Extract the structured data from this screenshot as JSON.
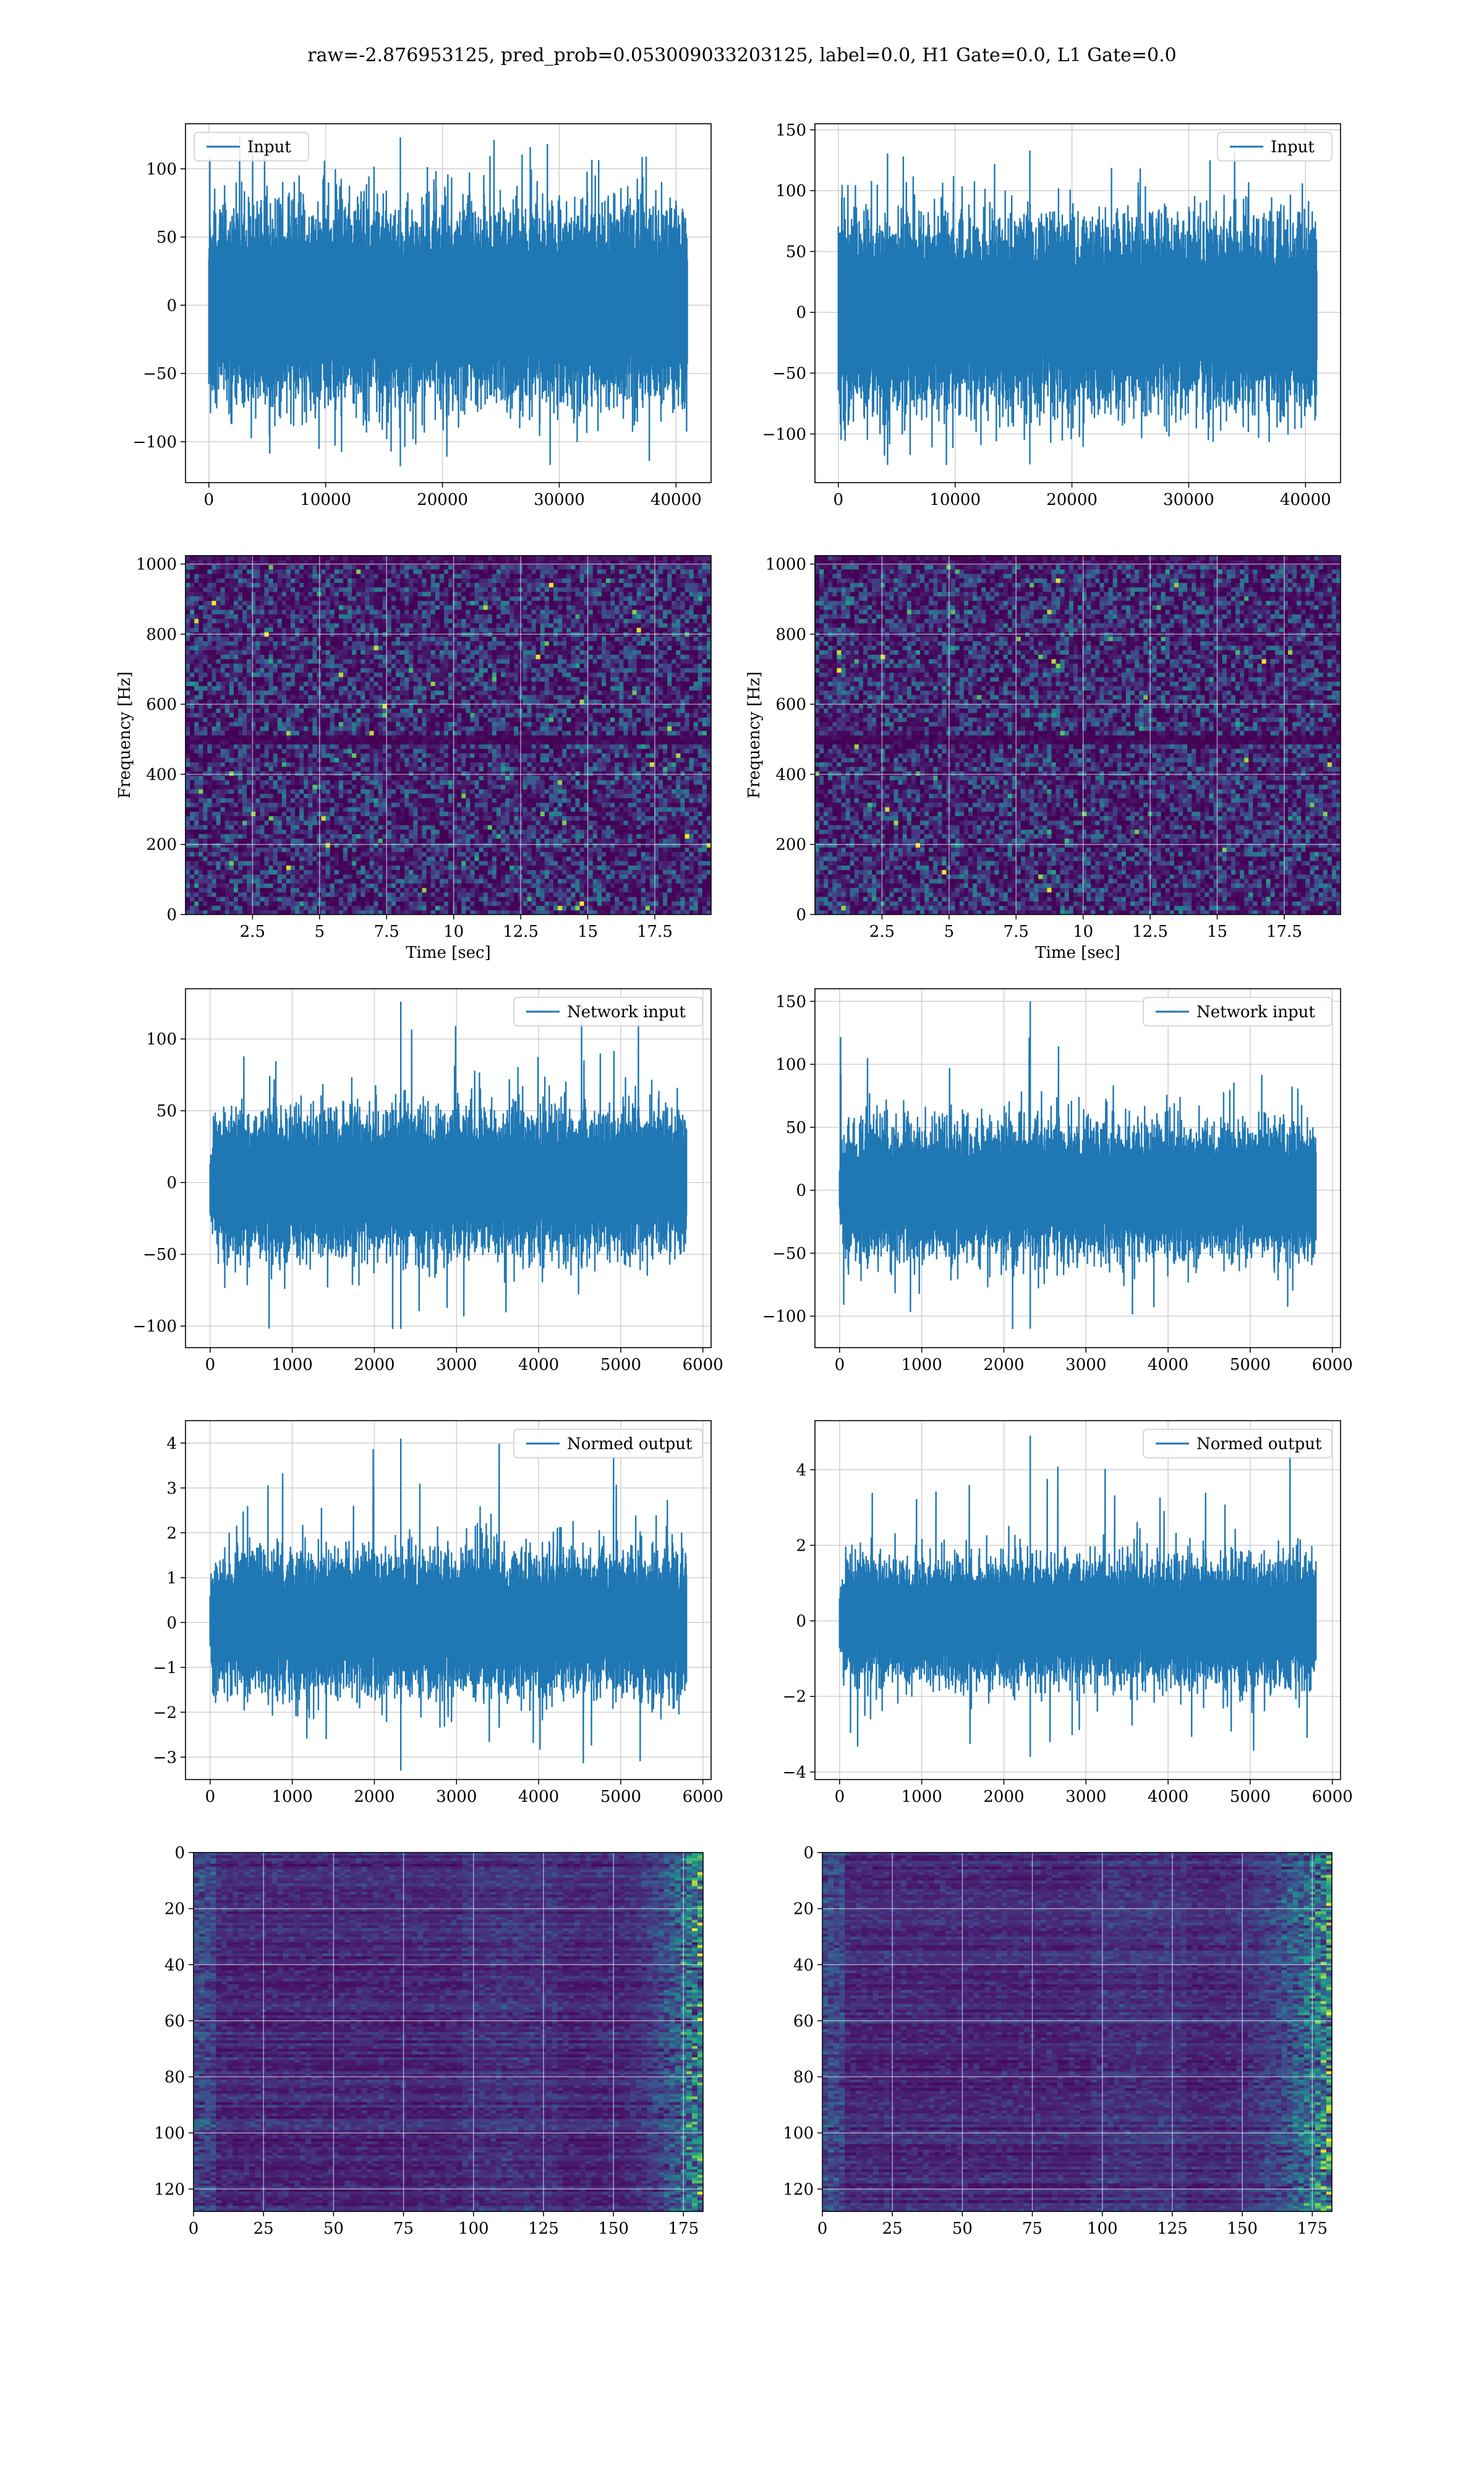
{
  "figure_title": "raw=-2.876953125, pred_prob=0.053009033203125, label=0.0, H1 Gate=0.0, L1 Gate=0.0",
  "colors": {
    "line": "#1f77b4",
    "grid": "#d0d0d0",
    "axes": "#000000"
  },
  "chart_data": [
    {
      "type": "line",
      "legend": "Input",
      "legend_loc": "upper-left",
      "xlim": [
        -2000,
        43000
      ],
      "ylim": [
        -130,
        133
      ],
      "xticks": [
        0,
        10000,
        20000,
        30000,
        40000
      ],
      "yticks": [
        -100,
        -50,
        0,
        50,
        100
      ],
      "x_range": [
        0,
        40960
      ],
      "amplitude_typ": 55,
      "amplitude_max": 123,
      "amplitude_min": -118,
      "xlabel": "",
      "ylabel": "",
      "grid": true
    },
    {
      "type": "line",
      "legend": "Input",
      "legend_loc": "upper-right",
      "xlim": [
        -2000,
        43000
      ],
      "ylim": [
        -140,
        155
      ],
      "xticks": [
        0,
        10000,
        20000,
        30000,
        40000
      ],
      "yticks": [
        -100,
        -50,
        0,
        50,
        100,
        150
      ],
      "x_range": [
        0,
        40960
      ],
      "amplitude_typ": 60,
      "amplitude_max": 133,
      "amplitude_min": -125,
      "xlabel": "",
      "ylabel": "",
      "grid": true
    },
    {
      "type": "heatmap",
      "subtype": "spectrogram",
      "colormap": "viridis",
      "xlim": [
        0,
        19.6
      ],
      "ylim": [
        0,
        1024
      ],
      "xticks": [
        2.5,
        5.0,
        7.5,
        10.0,
        12.5,
        15.0,
        17.5
      ],
      "yticks": [
        0,
        200,
        400,
        600,
        800,
        1000
      ],
      "xlabel": "Time [sec]",
      "ylabel": "Frequency [Hz]",
      "dark_band_hz": 500,
      "grid": true
    },
    {
      "type": "heatmap",
      "subtype": "spectrogram",
      "colormap": "viridis",
      "xlim": [
        0,
        19.6
      ],
      "ylim": [
        0,
        1024
      ],
      "xticks": [
        2.5,
        5.0,
        7.5,
        10.0,
        12.5,
        15.0,
        17.5
      ],
      "yticks": [
        0,
        200,
        400,
        600,
        800,
        1000
      ],
      "xlabel": "Time [sec]",
      "ylabel": "Frequency [Hz]",
      "dark_band_hz": 500,
      "grid": true
    },
    {
      "type": "line",
      "legend": "Network input",
      "legend_loc": "upper-right",
      "xlim": [
        -300,
        6100
      ],
      "ylim": [
        -115,
        135
      ],
      "xticks": [
        0,
        1000,
        2000,
        3000,
        4000,
        5000,
        6000
      ],
      "yticks": [
        -100,
        -50,
        0,
        50,
        100
      ],
      "x_range": [
        0,
        5800
      ],
      "amplitude_typ": 38,
      "amplitude_max": 126,
      "amplitude_min": -102,
      "taper": true,
      "xlabel": "",
      "ylabel": "",
      "grid": true
    },
    {
      "type": "line",
      "legend": "Network input",
      "legend_loc": "upper-right",
      "xlim": [
        -300,
        6100
      ],
      "ylim": [
        -125,
        160
      ],
      "xticks": [
        0,
        1000,
        2000,
        3000,
        4000,
        5000,
        6000
      ],
      "yticks": [
        -100,
        -50,
        0,
        50,
        100,
        150
      ],
      "x_range": [
        0,
        5800
      ],
      "amplitude_typ": 40,
      "amplitude_max": 150,
      "amplitude_min": -110,
      "taper": true,
      "xlabel": "",
      "ylabel": "",
      "grid": true
    },
    {
      "type": "line",
      "legend": "Normed output",
      "legend_loc": "upper-right",
      "xlim": [
        -300,
        6100
      ],
      "ylim": [
        -3.5,
        4.5
      ],
      "xticks": [
        0,
        1000,
        2000,
        3000,
        4000,
        5000,
        6000
      ],
      "yticks": [
        -3,
        -2,
        -1,
        0,
        1,
        2,
        3,
        4
      ],
      "x_range": [
        0,
        5800
      ],
      "amplitude_typ": 1.2,
      "amplitude_max": 4.1,
      "amplitude_min": -3.3,
      "taper": true,
      "xlabel": "",
      "ylabel": "",
      "grid": true
    },
    {
      "type": "line",
      "legend": "Normed output",
      "legend_loc": "upper-right",
      "xlim": [
        -300,
        6100
      ],
      "ylim": [
        -4.2,
        5.3
      ],
      "xticks": [
        0,
        1000,
        2000,
        3000,
        4000,
        5000,
        6000
      ],
      "yticks": [
        -4,
        -2,
        0,
        2,
        4
      ],
      "x_range": [
        0,
        5800
      ],
      "amplitude_typ": 1.25,
      "amplitude_max": 4.9,
      "amplitude_min": -3.6,
      "taper": true,
      "xlabel": "",
      "ylabel": "",
      "grid": true
    },
    {
      "type": "heatmap",
      "subtype": "image",
      "colormap": "viridis",
      "xlim": [
        0,
        182
      ],
      "ylim": [
        128,
        0
      ],
      "y_inverted": true,
      "xticks": [
        0,
        25,
        50,
        75,
        100,
        125,
        150,
        175
      ],
      "yticks": [
        0,
        20,
        40,
        60,
        80,
        100,
        120
      ],
      "rows": 128,
      "cols": 182,
      "bright_columns_from": 150,
      "xlabel": "",
      "ylabel": "",
      "grid": true
    },
    {
      "type": "heatmap",
      "subtype": "image",
      "colormap": "viridis",
      "xlim": [
        0,
        182
      ],
      "ylim": [
        128,
        0
      ],
      "y_inverted": true,
      "xticks": [
        0,
        25,
        50,
        75,
        100,
        125,
        150,
        175
      ],
      "yticks": [
        0,
        20,
        40,
        60,
        80,
        100,
        120
      ],
      "rows": 128,
      "cols": 182,
      "bright_columns_from": 140,
      "xlabel": "",
      "ylabel": "",
      "grid": true
    }
  ]
}
